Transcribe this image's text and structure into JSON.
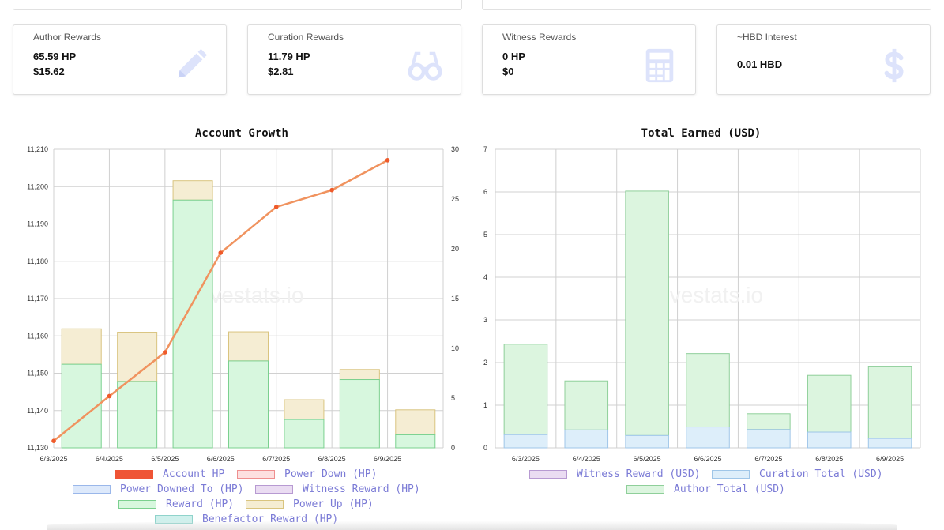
{
  "cards": [
    {
      "label": "Author Rewards",
      "line1": "65.59 HP",
      "line2": "$15.62",
      "icon": "pencil-icon"
    },
    {
      "label": "Curation Rewards",
      "line1": "11.79 HP",
      "line2": "$2.81",
      "icon": "glasses-icon"
    },
    {
      "label": "Witness Rewards",
      "line1": "0 HP",
      "line2": "$0",
      "icon": "calculator-icon"
    },
    {
      "label": "~HBD Interest",
      "line1": "0.01 HBD",
      "line2": "",
      "icon": "dollar-icon"
    }
  ],
  "icon_color": "#dde3fb",
  "chart_data": [
    {
      "type": "bar",
      "title": "Account Growth",
      "categories": [
        "6/3/2025",
        "6/4/2025",
        "6/5/2025",
        "6/6/2025",
        "6/7/2025",
        "6/8/2025",
        "6/9/2025"
      ],
      "y_left": {
        "min": 11130,
        "max": 11210,
        "ticks": [
          "11,130",
          "11,140",
          "11,150",
          "11,160",
          "11,170",
          "11,180",
          "11,190",
          "11,200",
          "11,210"
        ]
      },
      "y_right": {
        "min": 0,
        "max": 30,
        "ticks": [
          "0",
          "5",
          "10",
          "15",
          "20",
          "25",
          "30"
        ]
      },
      "bars_stacked": [
        {
          "name": "Reward (HP)",
          "fill": "#d7f7de",
          "stroke": "#7bd08f",
          "values": [
            11152.4,
            11147.8,
            11196.4,
            11153.3,
            11137.6,
            11148.3,
            11133.5
          ]
        },
        {
          "name": "Power Up (HP)",
          "fill": "#f5edd3",
          "stroke": "#d9c47f",
          "top_values": [
            11161.9,
            11161.0,
            11201.6,
            11161.1,
            11142.9,
            11151.0,
            11140.2
          ]
        }
      ],
      "line": {
        "name": "Account HP",
        "color": "#f0935f",
        "axis": "right",
        "values": [
          0.7,
          5.2,
          9.6,
          19.6,
          24.2,
          25.9,
          28.9
        ]
      },
      "legend": [
        {
          "label": "Account HP",
          "fill": "#ef5435",
          "stroke": "#ef5435"
        },
        {
          "label": "Power Down (HP)",
          "fill": "#fde0e0",
          "stroke": "#ef8f8f"
        },
        {
          "label": "Power Downed To (HP)",
          "fill": "#dde9fb",
          "stroke": "#9ab7ea"
        },
        {
          "label": "Witness Reward (HP)",
          "fill": "#eadcf2",
          "stroke": "#b79ad2"
        },
        {
          "label": "Reward (HP)",
          "fill": "#d7f7de",
          "stroke": "#7bd08f"
        },
        {
          "label": "Power Up (HP)",
          "fill": "#f5edd3",
          "stroke": "#d9c47f"
        },
        {
          "label": "Benefactor Reward (HP)",
          "fill": "#cff0ec",
          "stroke": "#8fd3cb"
        }
      ],
      "watermark": "hivestats.io"
    },
    {
      "type": "bar",
      "title": "Total Earned (USD)",
      "categories": [
        "6/3/2025",
        "6/4/2025",
        "6/5/2025",
        "6/6/2025",
        "6/7/2025",
        "6/8/2025",
        "6/9/2025"
      ],
      "y": {
        "min": 0,
        "max": 7,
        "ticks": [
          "0",
          "1",
          "2",
          "3",
          "4",
          "5",
          "6",
          "7"
        ]
      },
      "series": [
        {
          "name": "Curation Total (USD)",
          "fill": "#ddeefa",
          "stroke": "#9fc6e8",
          "values": [
            0.31,
            0.42,
            0.29,
            0.49,
            0.43,
            0.37,
            0.22
          ]
        },
        {
          "name": "Author Total (USD)",
          "fill": "#dcf5df",
          "stroke": "#8fcf9a",
          "values": [
            2.12,
            1.15,
            5.73,
            1.72,
            0.37,
            1.33,
            1.68
          ]
        }
      ],
      "legend": [
        {
          "label": "Witness Reward (USD)",
          "fill": "#eadcf2",
          "stroke": "#b79ad2"
        },
        {
          "label": "Curation Total (USD)",
          "fill": "#ddeefa",
          "stroke": "#9fc6e8"
        },
        {
          "label": "Author Total (USD)",
          "fill": "#dcf5df",
          "stroke": "#8fcf9a"
        }
      ],
      "watermark": "hivestats.io"
    }
  ]
}
